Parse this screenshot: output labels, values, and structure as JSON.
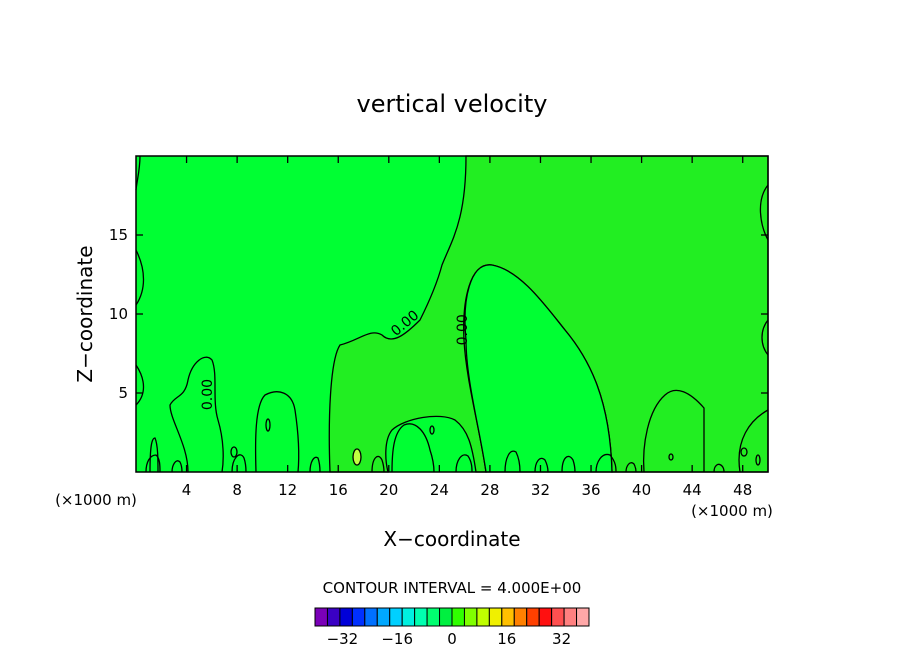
{
  "chart_data": {
    "type": "heatmap",
    "title": "vertical velocity",
    "xlabel": "X−coordinate",
    "ylabel": "Z−coordinate",
    "x_unit_left": "(×1000 m)",
    "x_unit_right": "(×1000 m)",
    "xlim": [
      0,
      50
    ],
    "ylim": [
      0,
      20
    ],
    "x_ticks": [
      4,
      8,
      12,
      16,
      20,
      24,
      28,
      32,
      36,
      40,
      44,
      48
    ],
    "y_ticks": [
      5,
      10,
      15
    ],
    "contour_interval_text": "CONTOUR INTERVAL = 4.000E+00",
    "contour_labels": [
      {
        "text": "0.00",
        "x": 21.5,
        "y": 9.2,
        "rotation": -40
      },
      {
        "text": "0.00",
        "x": 26.2,
        "y": 9.0,
        "rotation": -90
      },
      {
        "text": "0.00",
        "x": 6.0,
        "y": 4.9,
        "rotation": -90
      }
    ],
    "colorbar": {
      "min": -40,
      "max": 40,
      "interval": 4,
      "tick_labels": [
        "−32",
        "−16",
        "0",
        "16",
        "32"
      ],
      "tick_values": [
        -32,
        -16,
        0,
        16,
        32
      ],
      "colors": [
        "#7a00b8",
        "#3a00c4",
        "#0000d8",
        "#0030ff",
        "#0070ff",
        "#00a8ff",
        "#00d0ff",
        "#00f0e0",
        "#00ffb0",
        "#00ff70",
        "#00f040",
        "#30ff00",
        "#80ff00",
        "#c0ff00",
        "#f0f000",
        "#ffc000",
        "#ff8000",
        "#ff4000",
        "#ff1010",
        "#ff5050",
        "#ff8080",
        "#ffa8a8"
      ]
    },
    "fields": {
      "background_color": "#00ff33",
      "upper_region_color": "#22ee22",
      "contour_color": "#000000"
    }
  }
}
